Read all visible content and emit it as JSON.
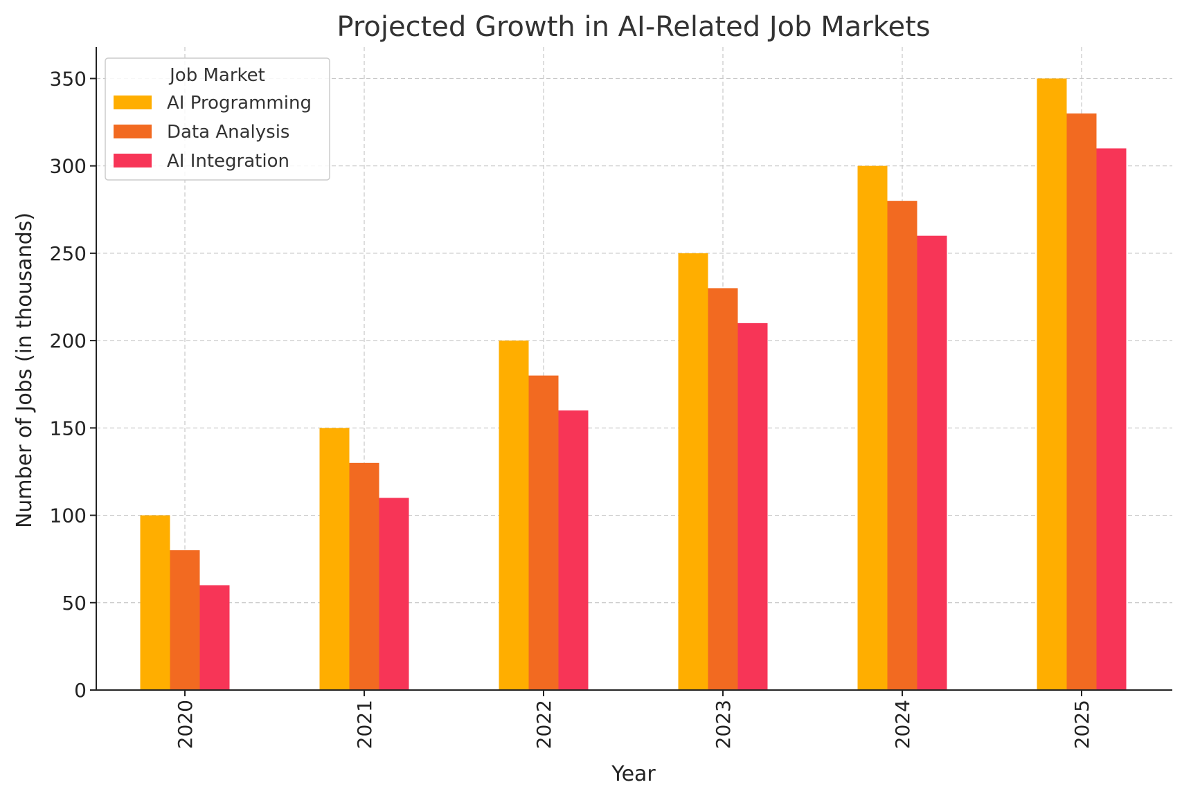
{
  "chart_data": {
    "type": "bar",
    "title": "Projected Growth in AI-Related Job Markets",
    "xlabel": "Year",
    "ylabel": "Number of Jobs (in thousands)",
    "categories": [
      "2020",
      "2021",
      "2022",
      "2023",
      "2024",
      "2025"
    ],
    "series": [
      {
        "name": "AI Programming",
        "values": [
          100,
          150,
          200,
          250,
          300,
          350
        ],
        "color": "#FFAE00"
      },
      {
        "name": "Data Analysis",
        "values": [
          80,
          130,
          180,
          230,
          280,
          330
        ],
        "color": "#F26A21"
      },
      {
        "name": "AI Integration",
        "values": [
          60,
          110,
          160,
          210,
          260,
          310
        ],
        "color": "#F73557"
      }
    ],
    "ylim": [
      0,
      368
    ],
    "yticks": [
      0,
      50,
      100,
      150,
      200,
      250,
      300,
      350
    ],
    "grid": true,
    "legend": {
      "title": "Job Market",
      "placement": "top-left"
    }
  }
}
